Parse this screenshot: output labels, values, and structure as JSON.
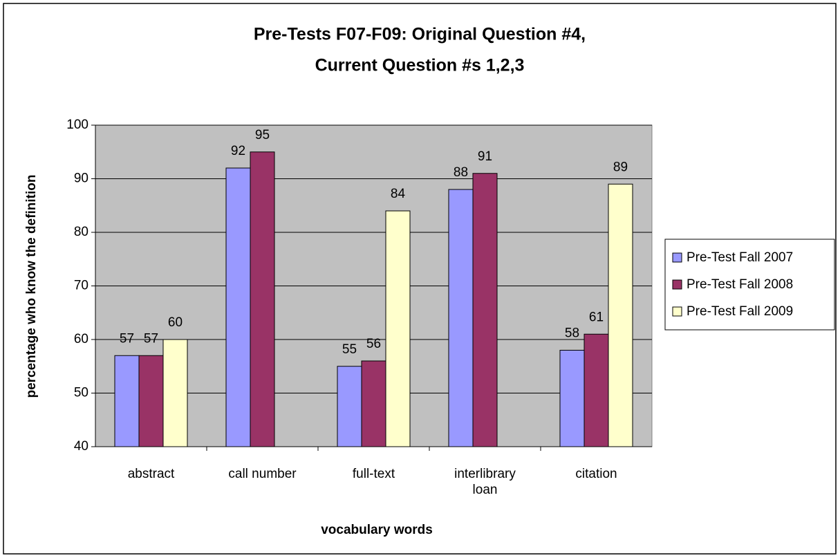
{
  "chart_data": {
    "type": "bar",
    "title": [
      "Pre-Tests F07-F09: Original Question #4,",
      "Current Question #s 1,2,3"
    ],
    "x_label": "vocabulary words",
    "y_label": "percentage who know the definition",
    "categories": [
      "abstract",
      "call number",
      "full-text",
      "interlibrary loan",
      "citation"
    ],
    "series": [
      {
        "name": "Pre-Test Fall 2007",
        "color": "#9999ff",
        "values": [
          57,
          92,
          55,
          88,
          58
        ]
      },
      {
        "name": "Pre-Test Fall 2008",
        "color": "#993366",
        "values": [
          57,
          95,
          56,
          91,
          61
        ]
      },
      {
        "name": "Pre-Test Fall 2009",
        "color": "#ffffcc",
        "values": [
          60,
          null,
          84,
          null,
          89
        ]
      }
    ],
    "ylim": [
      40,
      100
    ],
    "yticks": [
      40,
      50,
      60,
      70,
      80,
      90,
      100
    ],
    "grid": true,
    "plot_background": "#c0c0c0",
    "legend": "right"
  }
}
